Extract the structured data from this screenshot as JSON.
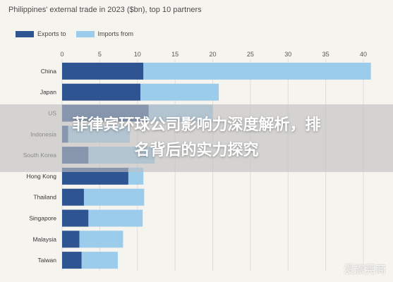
{
  "chart_data": {
    "type": "bar",
    "orientation": "horizontal",
    "stacked": true,
    "title": "Philippines' external trade in 2023 ($bn), top 10 partners",
    "categories": [
      "China",
      "Japan",
      "US",
      "Indonesia",
      "South Korea",
      "Hong Kong",
      "Thailand",
      "Singapore",
      "Malaysia",
      "Taiwan"
    ],
    "series": [
      {
        "name": "Exports to",
        "color": "#2e5591",
        "values": [
          10.8,
          10.4,
          11.5,
          0.8,
          3.5,
          8.8,
          2.9,
          3.5,
          2.3,
          2.6
        ]
      },
      {
        "name": "Imports from",
        "color": "#9cccec",
        "values": [
          30.2,
          10.4,
          8.5,
          8.2,
          8.8,
          2.0,
          8.0,
          7.2,
          5.8,
          4.8
        ]
      }
    ],
    "xlim": [
      0,
      40
    ],
    "xticks": [
      "0",
      "5",
      "10",
      "15",
      "20",
      "25",
      "30",
      "35",
      "40"
    ],
    "grid": true,
    "legend": "top-left"
  },
  "overlay": {
    "line1": "菲律宾环球公司影响力深度解析，排",
    "line2": "名背后的实力探究"
  },
  "watermark": "漫旅莞商"
}
